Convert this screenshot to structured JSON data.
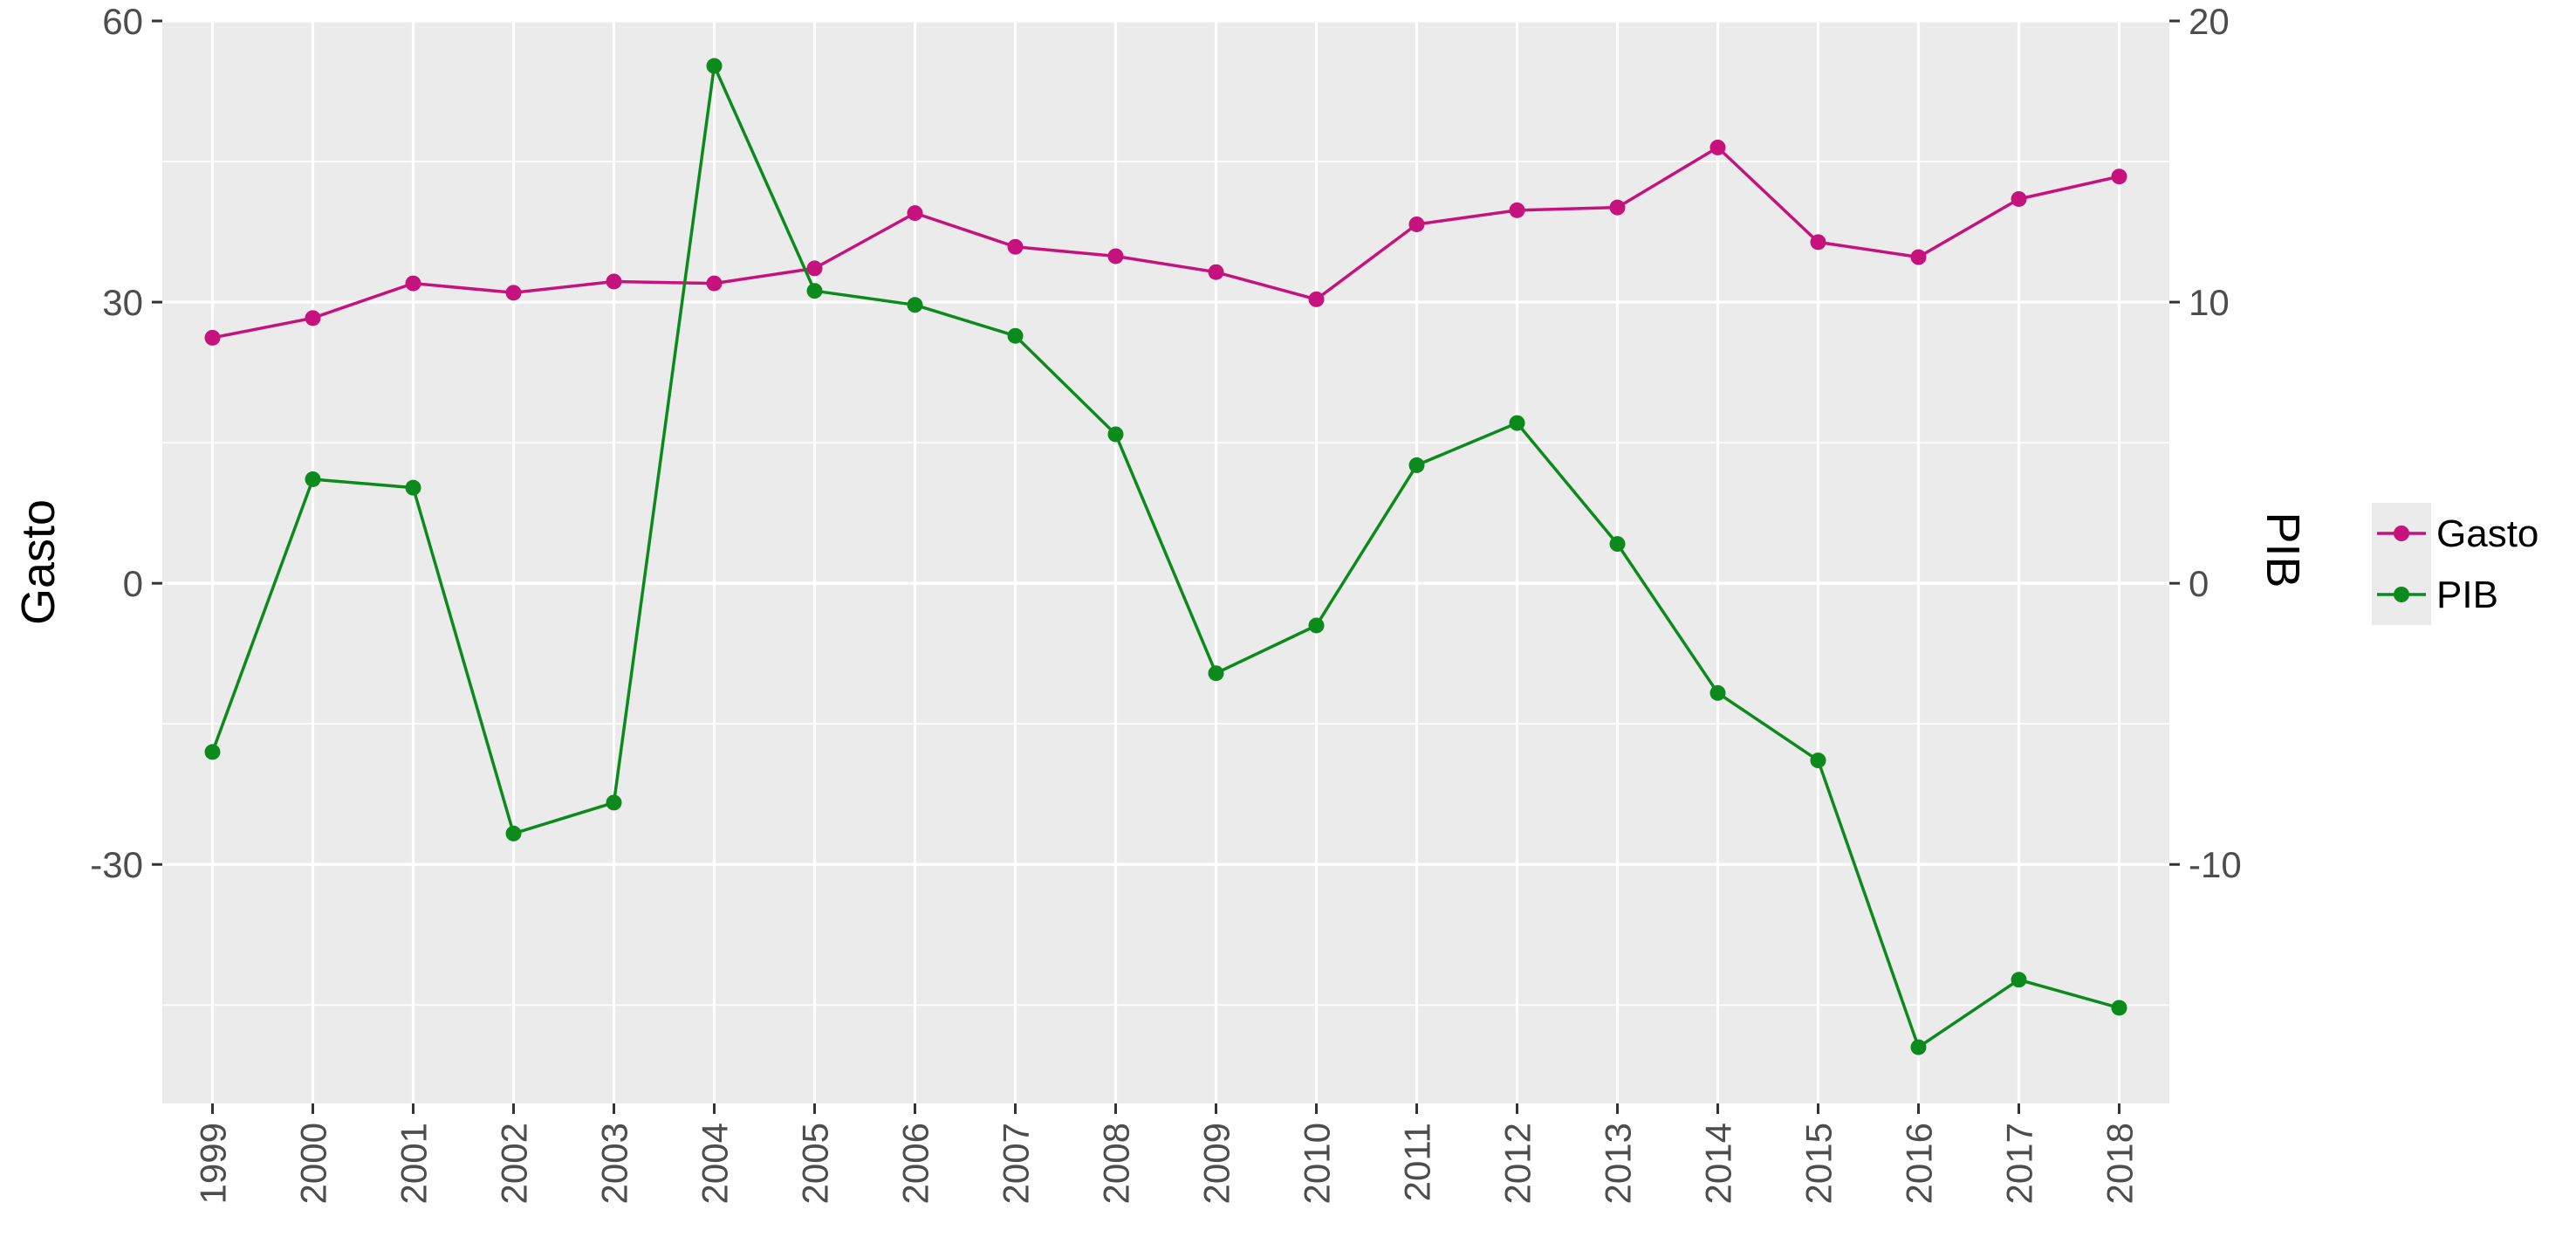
{
  "chart_data": {
    "type": "line",
    "x": [
      "1999",
      "2000",
      "2001",
      "2002",
      "2003",
      "2004",
      "2005",
      "2006",
      "2007",
      "2008",
      "2009",
      "2010",
      "2011",
      "2012",
      "2013",
      "2014",
      "2015",
      "2016",
      "2017",
      "2018"
    ],
    "series": [
      {
        "name": "Gasto",
        "axis": "left",
        "color": "#c6127c",
        "values": [
          26.2,
          28.3,
          32.0,
          31.0,
          32.2,
          32.0,
          33.6,
          39.5,
          35.9,
          34.9,
          33.2,
          30.3,
          38.3,
          39.8,
          40.1,
          46.5,
          36.4,
          34.8,
          41.0,
          43.4
        ]
      },
      {
        "name": "PIB",
        "axis": "right",
        "color": "#0c8a1c",
        "values": [
          -6.0,
          3.7,
          3.4,
          -8.9,
          -7.8,
          18.4,
          10.4,
          9.9,
          8.8,
          5.3,
          -3.2,
          -1.5,
          4.2,
          5.7,
          1.4,
          -3.9,
          -6.3,
          -16.5,
          -14.1,
          -15.1
        ]
      }
    ],
    "y_left": {
      "label": "Gasto",
      "range": [
        -55.5,
        60
      ],
      "ticks": [
        -30,
        0,
        30,
        60
      ],
      "tick_labels": [
        "-30",
        "0",
        "30",
        "60"
      ]
    },
    "y_right": {
      "label": "PIB",
      "range": [
        -18.5,
        20
      ],
      "ticks": [
        -10,
        0,
        10,
        20
      ],
      "tick_labels": [
        "-10",
        "0",
        "10",
        "20"
      ]
    },
    "grid": true,
    "legend": {
      "position": "right",
      "entries": [
        "Gasto",
        "PIB"
      ]
    },
    "panel_background": "#ebebeb",
    "grid_color": "#ffffff"
  }
}
